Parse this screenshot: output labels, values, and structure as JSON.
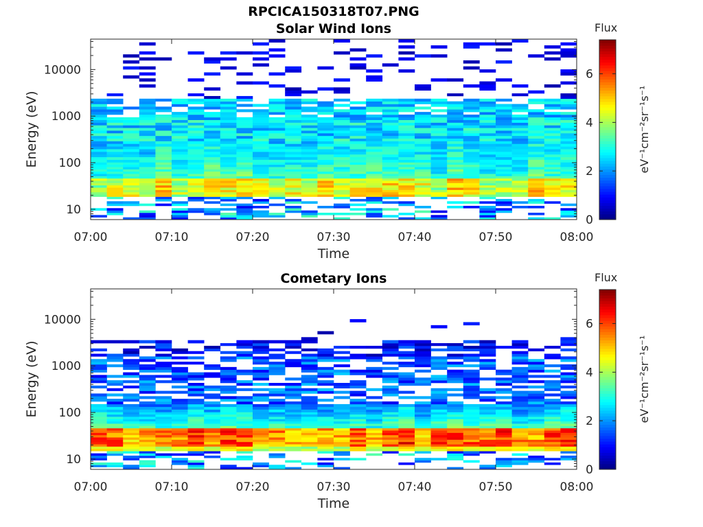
{
  "figure": {
    "title": "RPCICA150318T07.PNG"
  },
  "chart_data": [
    {
      "type": "heatmap",
      "title": "Solar Wind Ions",
      "xlabel": "Time",
      "ylabel": "Energy (eV)",
      "x_ticks": [
        "07:00",
        "07:10",
        "07:20",
        "07:30",
        "07:40",
        "07:50",
        "08:00"
      ],
      "x_range": [
        "07:00",
        "08:00"
      ],
      "y_scale": "log",
      "y_ticks": [
        10,
        100,
        1000,
        10000
      ],
      "y_range": [
        6,
        45000
      ],
      "colorbar": {
        "label": "Flux",
        "unit": "eV⁻¹cm⁻²sr⁻¹s⁻¹",
        "ticks": [
          0,
          2,
          4,
          6
        ],
        "range": [
          0,
          7.4
        ],
        "colormap": "jet"
      },
      "features": {
        "peak_flux": 5.3,
        "peak_energy_range_eV": [
          18,
          45
        ],
        "core_energy_range_eV": [
          30,
          300
        ],
        "high_energy_band_eV": [
          900,
          2500
        ],
        "sparse_upper_band_eV": [
          2500,
          45000
        ]
      }
    },
    {
      "type": "heatmap",
      "title": "Cometary Ions",
      "xlabel": "Time",
      "ylabel": "Energy (eV)",
      "x_ticks": [
        "07:00",
        "07:10",
        "07:20",
        "07:30",
        "07:40",
        "07:50",
        "08:00"
      ],
      "x_range": [
        "07:00",
        "08:00"
      ],
      "y_scale": "log",
      "y_ticks": [
        10,
        100,
        1000,
        10000
      ],
      "y_range": [
        6,
        45000
      ],
      "colorbar": {
        "label": "Flux",
        "unit": "eV⁻¹cm⁻²sr⁻¹s⁻¹",
        "ticks": [
          0,
          2,
          4,
          6
        ],
        "range": [
          0,
          7.4
        ],
        "colormap": "jet"
      },
      "features": {
        "peak_flux": 6.4,
        "peak_energy_range_eV": [
          18,
          45
        ],
        "core_energy_range_eV": [
          15,
          150
        ],
        "high_energy_band_eV": [
          1500,
          3500
        ],
        "sparse_upper_band_eV": [
          3500,
          10000
        ]
      }
    }
  ]
}
